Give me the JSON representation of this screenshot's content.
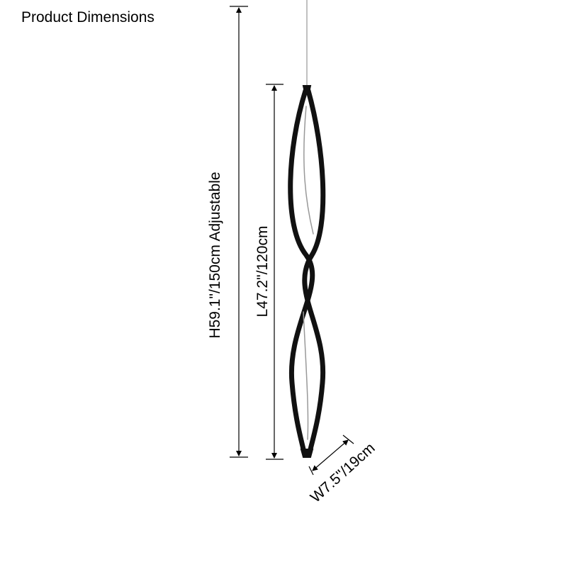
{
  "title": "Product Dimensions",
  "dimensions": {
    "height": "H59.1\"/150cm Adjustable",
    "length": "L47.2\"/120cm",
    "width": "W7.5\"/19cm"
  },
  "colors": {
    "lamp": "#111111",
    "line": "#000000",
    "wire": "#aaaaaa"
  }
}
